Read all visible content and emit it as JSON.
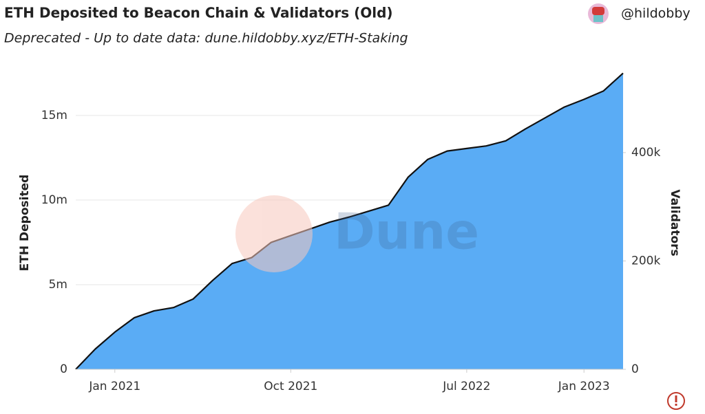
{
  "chart_data": {
    "type": "area",
    "title": "ETH Deposited to Beacon Chain & Validators (Old)",
    "subtitle": "Deprecated - Up to date data: dune.hildobby.xyz/ETH-Staking",
    "author": "@hildobby",
    "watermark": "Dune",
    "y_label": "ETH Deposited",
    "y2_label": "Validators",
    "x": [
      "2020-11",
      "2020-12",
      "2021-01",
      "2021-02",
      "2021-03",
      "2021-04",
      "2021-05",
      "2021-06",
      "2021-07",
      "2021-08",
      "2021-09",
      "2021-10",
      "2021-11",
      "2021-12",
      "2022-01",
      "2022-02",
      "2022-03",
      "2022-04",
      "2022-05",
      "2022-06",
      "2022-07",
      "2022-08",
      "2022-09",
      "2022-10",
      "2022-11",
      "2022-12",
      "2023-01",
      "2023-02",
      "2023-03"
    ],
    "series": [
      {
        "name": "ETH Deposited",
        "color": "#5aacf5",
        "line_color": "#111111",
        "values": [
          0,
          1200000,
          2200000,
          3050000,
          3450000,
          3650000,
          4150000,
          5250000,
          6250000,
          6600000,
          7500000,
          7900000,
          8300000,
          8700000,
          9000000,
          9350000,
          9700000,
          11350000,
          12400000,
          12900000,
          13050000,
          13200000,
          13500000,
          14200000,
          14850000,
          15500000,
          15950000,
          16450000,
          17500000
        ]
      }
    ],
    "xlim": [
      "2020-11",
      "2023-03"
    ],
    "xticks": [
      {
        "value": "2021-01",
        "label": "Jan 2021"
      },
      {
        "value": "2021-10",
        "label": "Oct 2021"
      },
      {
        "value": "2022-07",
        "label": "Jul 2022"
      },
      {
        "value": "2023-01",
        "label": "Jan 2023"
      }
    ],
    "ylim": [
      0,
      17800000
    ],
    "yticks": [
      0,
      {
        "value": 5000000,
        "label": "5m"
      },
      {
        "value": 10000000,
        "label": "10m"
      },
      {
        "value": 15000000,
        "label": "15m"
      }
    ],
    "y2lim": [
      0,
      556000
    ],
    "y2ticks": [
      0,
      {
        "value": 200000,
        "label": "200k"
      },
      {
        "value": 400000,
        "label": "400k"
      }
    ],
    "grid": true
  }
}
